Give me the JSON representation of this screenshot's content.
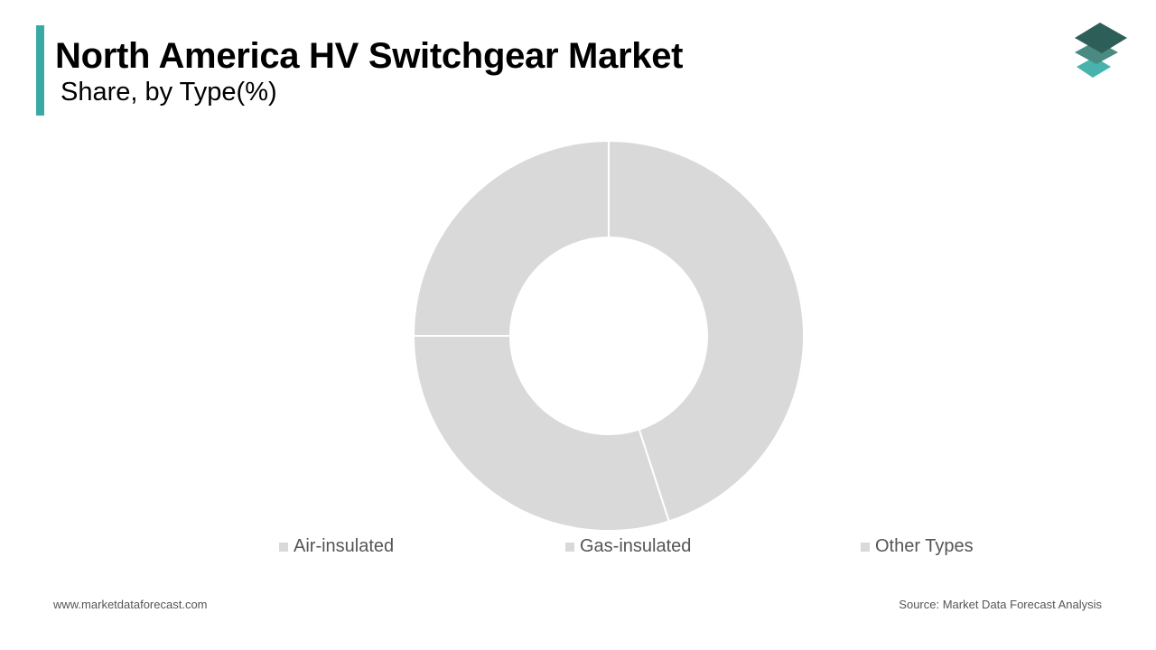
{
  "header": {
    "title": "North America HV Switchgear Market",
    "subtitle": "Share, by Type(%)"
  },
  "logo": {
    "icon": "stacked-layers-icon",
    "colors": [
      "#2e5e58",
      "#4a8a82",
      "#48b3ad"
    ]
  },
  "chart_data": {
    "type": "pie",
    "donut": true,
    "categories": [
      "Air-insulated",
      "Gas-insulated",
      "Other Types"
    ],
    "values": [
      45,
      30,
      25
    ],
    "colors": [
      "#d9d9d9",
      "#d9d9d9",
      "#d9d9d9"
    ],
    "legend": "bottom",
    "title": "North America HV Switchgear Market",
    "subtitle": "Share, by Type(%)"
  },
  "footer": {
    "website": "www.marketdataforecast.com",
    "source": "Source: Market Data Forecast Analysis"
  }
}
